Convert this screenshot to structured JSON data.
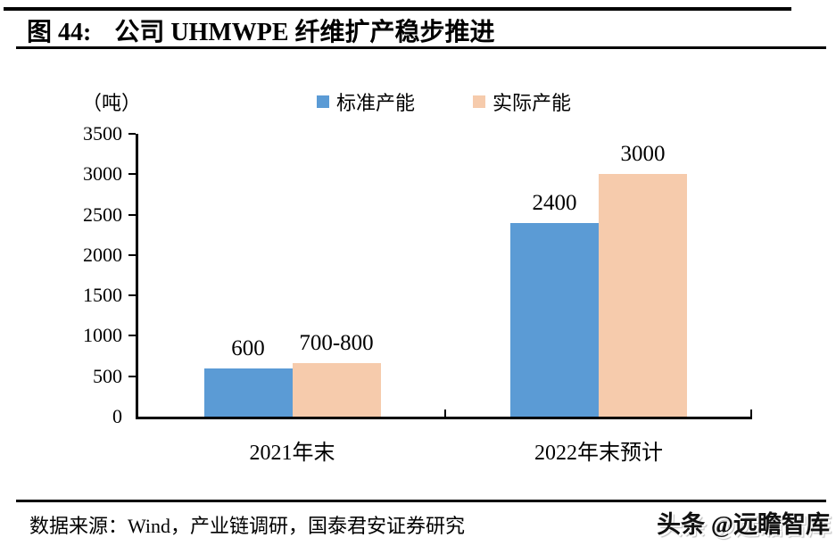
{
  "header": {
    "figure_label": "图 44:",
    "title": "公司 UHMWPE 纤维扩产稳步推进"
  },
  "chart_data": {
    "type": "bar",
    "title": "公司 UHMWPE 纤维扩产稳步推进",
    "unit_label": "（吨）",
    "categories": [
      "2021年末",
      "2022年末预计"
    ],
    "series": [
      {
        "name": "标准产能",
        "color": "#5B9BD5",
        "values": [
          600,
          2400
        ],
        "data_labels": [
          "600",
          "2400"
        ]
      },
      {
        "name": "实际产能",
        "color": "#F6CBAC",
        "values": [
          750,
          3000
        ],
        "data_labels": [
          "700-800",
          "3000"
        ],
        "draw_values": [
          660,
          3000
        ]
      }
    ],
    "ylim": [
      0,
      3500
    ],
    "yticks": [
      0,
      500,
      1000,
      1500,
      2000,
      2500,
      3000,
      3500
    ],
    "grid": false,
    "legend_position": "top"
  },
  "footer": {
    "source": "数据来源：Wind，产业链调研，国泰君安证券研究",
    "watermark": "头条 @远瞻智库"
  }
}
